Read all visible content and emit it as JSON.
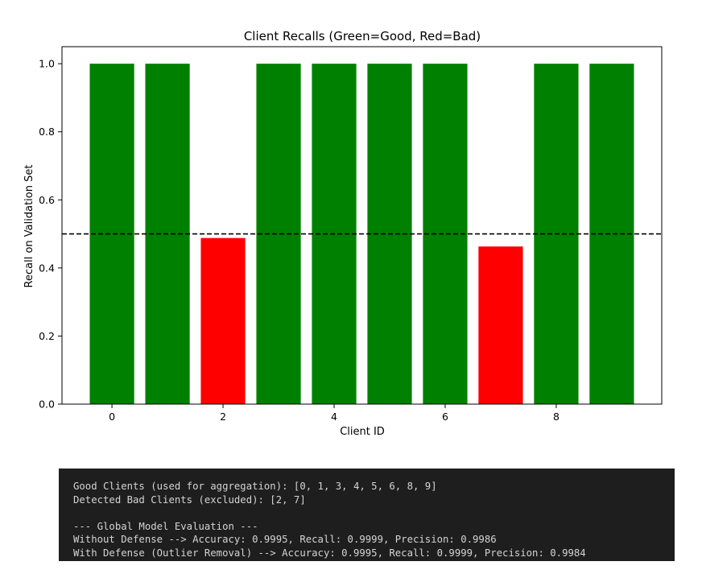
{
  "chart_data": {
    "type": "bar",
    "title": "Client Recalls (Green=Good, Red=Bad)",
    "xlabel": "Client ID",
    "ylabel": "Recall on Validation Set",
    "categories": [
      0,
      1,
      2,
      3,
      4,
      5,
      6,
      7,
      8,
      9
    ],
    "values": [
      1.0,
      1.0,
      0.488,
      1.0,
      1.0,
      1.0,
      1.0,
      0.463,
      1.0,
      1.0
    ],
    "bar_colors": [
      "#008000",
      "#008000",
      "#ff0000",
      "#008000",
      "#008000",
      "#008000",
      "#008000",
      "#ff0000",
      "#008000",
      "#008000"
    ],
    "threshold": 0.5,
    "threshold_style": "dashed black horizontal line",
    "xlim": [
      -0.9,
      9.9
    ],
    "ylim": [
      0,
      1.05
    ],
    "xticks": [
      "0",
      "2",
      "4",
      "6",
      "8"
    ],
    "yticks": [
      "0.0",
      "0.2",
      "0.4",
      "0.6",
      "0.8",
      "1.0"
    ],
    "grid": false,
    "colors": {
      "good": "#008000",
      "bad": "#ff0000"
    }
  },
  "console": {
    "lines": [
      "Good Clients (used for aggregation): [0, 1, 3, 4, 5, 6, 8, 9]",
      "Detected Bad Clients (excluded): [2, 7]",
      "",
      "--- Global Model Evaluation ---",
      "Without Defense --> Accuracy: 0.9995, Recall: 0.9999, Precision: 0.9986",
      "With Defense (Outlier Removal) --> Accuracy: 0.9995, Recall: 0.9999, Precision: 0.9984"
    ]
  }
}
